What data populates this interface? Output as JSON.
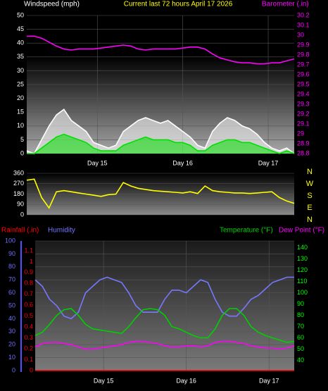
{
  "chart_data": [
    {
      "type": "line",
      "title": "Current last 72 hours April 17 2026",
      "ylabel": "Windspeed (mph)",
      "y2label": "Barometer (.in)",
      "x": [
        0,
        2,
        4,
        6,
        8,
        10,
        12,
        14,
        16,
        18,
        20,
        22,
        24,
        26,
        28,
        30,
        32,
        34,
        36,
        38,
        40,
        42,
        44,
        46,
        48,
        50,
        52,
        54,
        56,
        58,
        60,
        62,
        64,
        66,
        68,
        70,
        72
      ],
      "xlim": [
        0,
        72
      ],
      "xticks": [
        {
          "value": 19,
          "label": "Day 15"
        },
        {
          "value": 42,
          "label": "Day 16"
        },
        {
          "value": 65,
          "label": "Day 17"
        }
      ],
      "ylim": [
        0,
        50
      ],
      "yticks": [
        0,
        5,
        10,
        15,
        20,
        25,
        30,
        35,
        40,
        45,
        50
      ],
      "ycolor": "#ffffff",
      "y2lim": [
        28.8,
        30.2
      ],
      "y2ticks": [
        28.8,
        28.9,
        29,
        29.1,
        29.2,
        29.3,
        29.4,
        29.5,
        29.6,
        29.7,
        29.8,
        29.9,
        30,
        30.1,
        30.2
      ],
      "y2color": "#ff00ff",
      "grid": true,
      "series": [
        {
          "color": "#ffffff",
          "fill": true,
          "values": [
            1,
            0,
            5,
            10,
            14,
            16,
            12,
            10,
            8,
            4,
            3,
            2,
            3,
            8,
            10,
            12,
            13,
            12,
            11,
            12,
            10,
            8,
            6,
            3,
            2,
            8,
            11,
            13,
            12,
            10,
            9,
            7,
            4,
            2,
            1,
            2,
            0
          ]
        },
        {
          "color": "#00e000",
          "fill": true,
          "values": [
            0,
            0,
            2,
            4,
            6,
            7,
            6,
            5,
            4,
            2,
            1,
            1,
            1,
            3,
            4,
            5,
            6,
            5,
            5,
            5,
            4,
            4,
            3,
            1,
            1,
            3,
            4,
            5,
            5,
            4,
            4,
            3,
            2,
            1,
            0,
            1,
            0
          ]
        },
        {
          "color": "#ff00ff",
          "axis": "y2",
          "values": [
            29.99,
            29.99,
            29.97,
            29.93,
            29.89,
            29.86,
            29.85,
            29.86,
            29.86,
            29.86,
            29.87,
            29.88,
            29.89,
            29.9,
            29.89,
            29.86,
            29.85,
            29.86,
            29.86,
            29.86,
            29.86,
            29.87,
            29.88,
            29.88,
            29.86,
            29.81,
            29.77,
            29.75,
            29.73,
            29.72,
            29.72,
            29.71,
            29.71,
            29.72,
            29.72,
            29.74,
            29.76
          ]
        }
      ]
    },
    {
      "type": "line",
      "x": [
        0,
        2,
        4,
        6,
        8,
        10,
        12,
        14,
        16,
        18,
        20,
        22,
        24,
        26,
        28,
        30,
        32,
        34,
        36,
        38,
        40,
        42,
        44,
        46,
        48,
        50,
        52,
        54,
        56,
        58,
        60,
        62,
        64,
        66,
        68,
        70,
        72
      ],
      "xlim": [
        0,
        72
      ],
      "ylim": [
        0,
        360
      ],
      "yticks": [
        0,
        90,
        180,
        270,
        360
      ],
      "ycolor": "#ffffff",
      "compass": [
        "N",
        "W",
        "S",
        "E",
        "N"
      ],
      "compass_color": "#ffff00",
      "grid": true,
      "series": [
        {
          "color": "#ffff00",
          "values": [
            300,
            310,
            150,
            60,
            200,
            210,
            200,
            190,
            180,
            170,
            160,
            175,
            180,
            280,
            250,
            230,
            220,
            210,
            205,
            200,
            195,
            190,
            200,
            185,
            250,
            210,
            200,
            195,
            190,
            190,
            185,
            190,
            195,
            200,
            150,
            120,
            100
          ]
        }
      ]
    },
    {
      "type": "line",
      "x": [
        0,
        2,
        4,
        6,
        8,
        10,
        12,
        14,
        16,
        18,
        20,
        22,
        24,
        26,
        28,
        30,
        32,
        34,
        36,
        38,
        40,
        42,
        44,
        46,
        48,
        50,
        52,
        54,
        56,
        58,
        60,
        62,
        64,
        66,
        68,
        70,
        72
      ],
      "xlim": [
        0,
        72
      ],
      "xticks": [
        {
          "value": 19,
          "label": "Day 15"
        },
        {
          "value": 42,
          "label": "Day 16"
        },
        {
          "value": 65,
          "label": "Day 17"
        }
      ],
      "ylim": [
        0,
        100
      ],
      "yticks": [
        0,
        10,
        20,
        30,
        40,
        50,
        60,
        70,
        80,
        90,
        100
      ],
      "ycolor": "#7070ff",
      "y2lim": [
        31,
        146
      ],
      "y2ticks": [
        40,
        50,
        60,
        70,
        80,
        90,
        100,
        110,
        120,
        130,
        140
      ],
      "y2color": "#00ff00",
      "y3lim": [
        0,
        1.19
      ],
      "y3ticks": [
        0,
        0.1,
        0.2,
        0.3,
        0.4,
        0.5,
        0.6,
        0.7,
        0.8,
        0.9,
        1,
        1.1
      ],
      "y3color": "#ff0000",
      "grid": true,
      "series": [
        {
          "name": "Rainfall (.in)",
          "color": "#ff0000",
          "axis": "y3",
          "values": [
            0,
            0,
            0,
            0,
            0,
            0,
            0,
            0,
            0,
            0,
            0,
            0,
            0,
            0,
            0,
            0,
            0,
            0,
            0,
            0,
            0,
            0,
            0,
            0,
            0,
            0,
            0,
            0,
            0,
            0,
            0,
            0,
            0,
            0,
            0,
            0,
            0
          ]
        },
        {
          "name": "Humidity",
          "color": "#7777ff",
          "values": [
            70,
            65,
            55,
            50,
            42,
            40,
            45,
            60,
            65,
            70,
            72,
            70,
            68,
            60,
            50,
            45,
            45,
            45,
            55,
            62,
            62,
            60,
            65,
            70,
            68,
            55,
            45,
            42,
            42,
            48,
            55,
            58,
            63,
            68,
            70,
            72,
            72
          ]
        },
        {
          "name": "Temperature (°F)",
          "color": "#00d000",
          "axis": "y2",
          "values": [
            62,
            65,
            72,
            80,
            85,
            86,
            80,
            72,
            68,
            67,
            66,
            65,
            64,
            70,
            78,
            85,
            86,
            85,
            80,
            70,
            68,
            65,
            62,
            60,
            60,
            68,
            80,
            86,
            86,
            80,
            70,
            65,
            62,
            60,
            58,
            56,
            57
          ]
        },
        {
          "name": "Dew Point (°F)",
          "color": "#ff00ff",
          "axis": "y2",
          "values": [
            52,
            55,
            56,
            56,
            55,
            54,
            52,
            50,
            50,
            51,
            52,
            53,
            54,
            56,
            57,
            57,
            56,
            55,
            53,
            52,
            52,
            53,
            53,
            52,
            53,
            56,
            57,
            57,
            56,
            55,
            53,
            52,
            51,
            51,
            50,
            51,
            53
          ]
        }
      ]
    }
  ]
}
